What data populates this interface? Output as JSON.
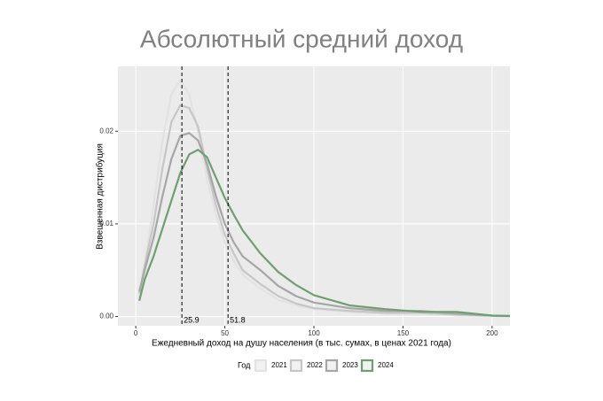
{
  "chart_data": {
    "type": "line",
    "title": "Абсолютный средний доход",
    "x_label": "Ежедневный доход на душу населения (в тыс. сумах, в ценах 2021 года)",
    "y_label": "Взвешенная дистрибуция",
    "legend_title": "Год",
    "x": [
      2,
      5,
      10,
      15,
      20,
      25,
      30,
      35,
      40,
      45,
      50,
      55,
      60,
      70,
      80,
      90,
      100,
      120,
      140,
      160,
      180,
      200,
      210
    ],
    "series": [
      {
        "name": "2021",
        "color": "#e2e2e2",
        "values": [
          0.002,
          0.0055,
          0.012,
          0.019,
          0.024,
          0.0255,
          0.024,
          0.02,
          0.0148,
          0.011,
          0.008,
          0.006,
          0.0045,
          0.003,
          0.0018,
          0.0012,
          0.0008,
          0.0005,
          0.0003,
          0.0003,
          0.0001,
          5e-05,
          3e-05
        ]
      },
      {
        "name": "2022",
        "color": "#c6c6c6",
        "values": [
          0.0025,
          0.0055,
          0.01,
          0.016,
          0.021,
          0.0228,
          0.0225,
          0.0205,
          0.016,
          0.012,
          0.0088,
          0.0068,
          0.005,
          0.0035,
          0.0022,
          0.0014,
          0.0009,
          0.0006,
          0.0004,
          0.0004,
          0.0002,
          0.0001,
          5e-05
        ]
      },
      {
        "name": "2023",
        "color": "#a6a6a6",
        "values": [
          0.0027,
          0.005,
          0.0085,
          0.013,
          0.017,
          0.0195,
          0.0198,
          0.019,
          0.0165,
          0.013,
          0.01,
          0.008,
          0.0065,
          0.005,
          0.0033,
          0.0022,
          0.0015,
          0.0009,
          0.0006,
          0.0006,
          0.0003,
          0.0001,
          5e-05
        ]
      },
      {
        "name": "2024",
        "color": "#6f9f6f",
        "values": [
          0.0017,
          0.004,
          0.0065,
          0.0095,
          0.0125,
          0.0155,
          0.0175,
          0.018,
          0.0172,
          0.015,
          0.0128,
          0.011,
          0.0093,
          0.0068,
          0.0048,
          0.0034,
          0.0023,
          0.0012,
          0.0008,
          0.0005,
          0.0005,
          0.0001,
          5e-05
        ]
      }
    ],
    "vlines": [
      25.9,
      51.8
    ],
    "xlim": [
      -10,
      210
    ],
    "xticks": [
      0,
      50,
      100,
      150,
      200
    ],
    "ylim": [
      -0.001,
      0.027
    ],
    "yticks": [
      {
        "value": 0,
        "label": "0.00"
      },
      {
        "value": 0.01,
        "label": "0.01"
      },
      {
        "value": 0.02,
        "label": "0.02"
      }
    ],
    "grid": true
  }
}
